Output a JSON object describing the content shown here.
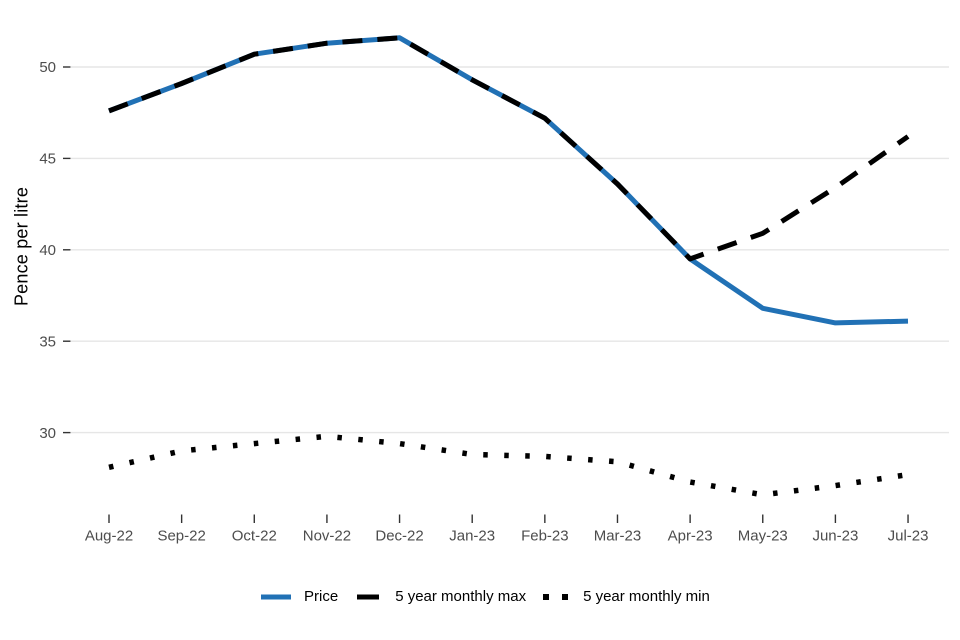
{
  "chart_data": {
    "type": "line",
    "title": "",
    "xlabel": "",
    "ylabel": "Pence per litre",
    "categories": [
      "Aug-22",
      "Sep-22",
      "Oct-22",
      "Nov-22",
      "Dec-22",
      "Jan-23",
      "Feb-23",
      "Mar-23",
      "Apr-23",
      "May-23",
      "Jun-23",
      "Jul-23"
    ],
    "y_ticks": [
      30,
      35,
      40,
      45,
      50
    ],
    "ylim": [
      26.5,
      52
    ],
    "grid": "horizontal-major-only",
    "legend_position": "bottom-center",
    "series": [
      {
        "name": "Price",
        "style": "solid",
        "color": "#2171b5",
        "values": [
          47.6,
          49.1,
          50.7,
          51.3,
          51.6,
          49.3,
          47.2,
          43.6,
          39.5,
          36.8,
          36.0,
          36.1
        ]
      },
      {
        "name": "5 year monthly max",
        "style": "dashed",
        "color": "#000000",
        "values": [
          47.6,
          49.1,
          50.7,
          51.3,
          51.6,
          49.3,
          47.2,
          43.6,
          39.5,
          40.9,
          43.4,
          46.2
        ]
      },
      {
        "name": "5 year monthly min",
        "style": "dotted",
        "color": "#000000",
        "values": [
          28.1,
          29.0,
          29.4,
          29.8,
          29.4,
          28.8,
          28.7,
          28.4,
          27.3,
          26.6,
          27.1,
          27.7
        ]
      }
    ],
    "colors": {
      "accent_blue": "#2171b5",
      "series_black": "#000000",
      "gridline": "#e6e6e6",
      "axis_text": "#4d4d4d",
      "axis_title": "#000000"
    }
  }
}
